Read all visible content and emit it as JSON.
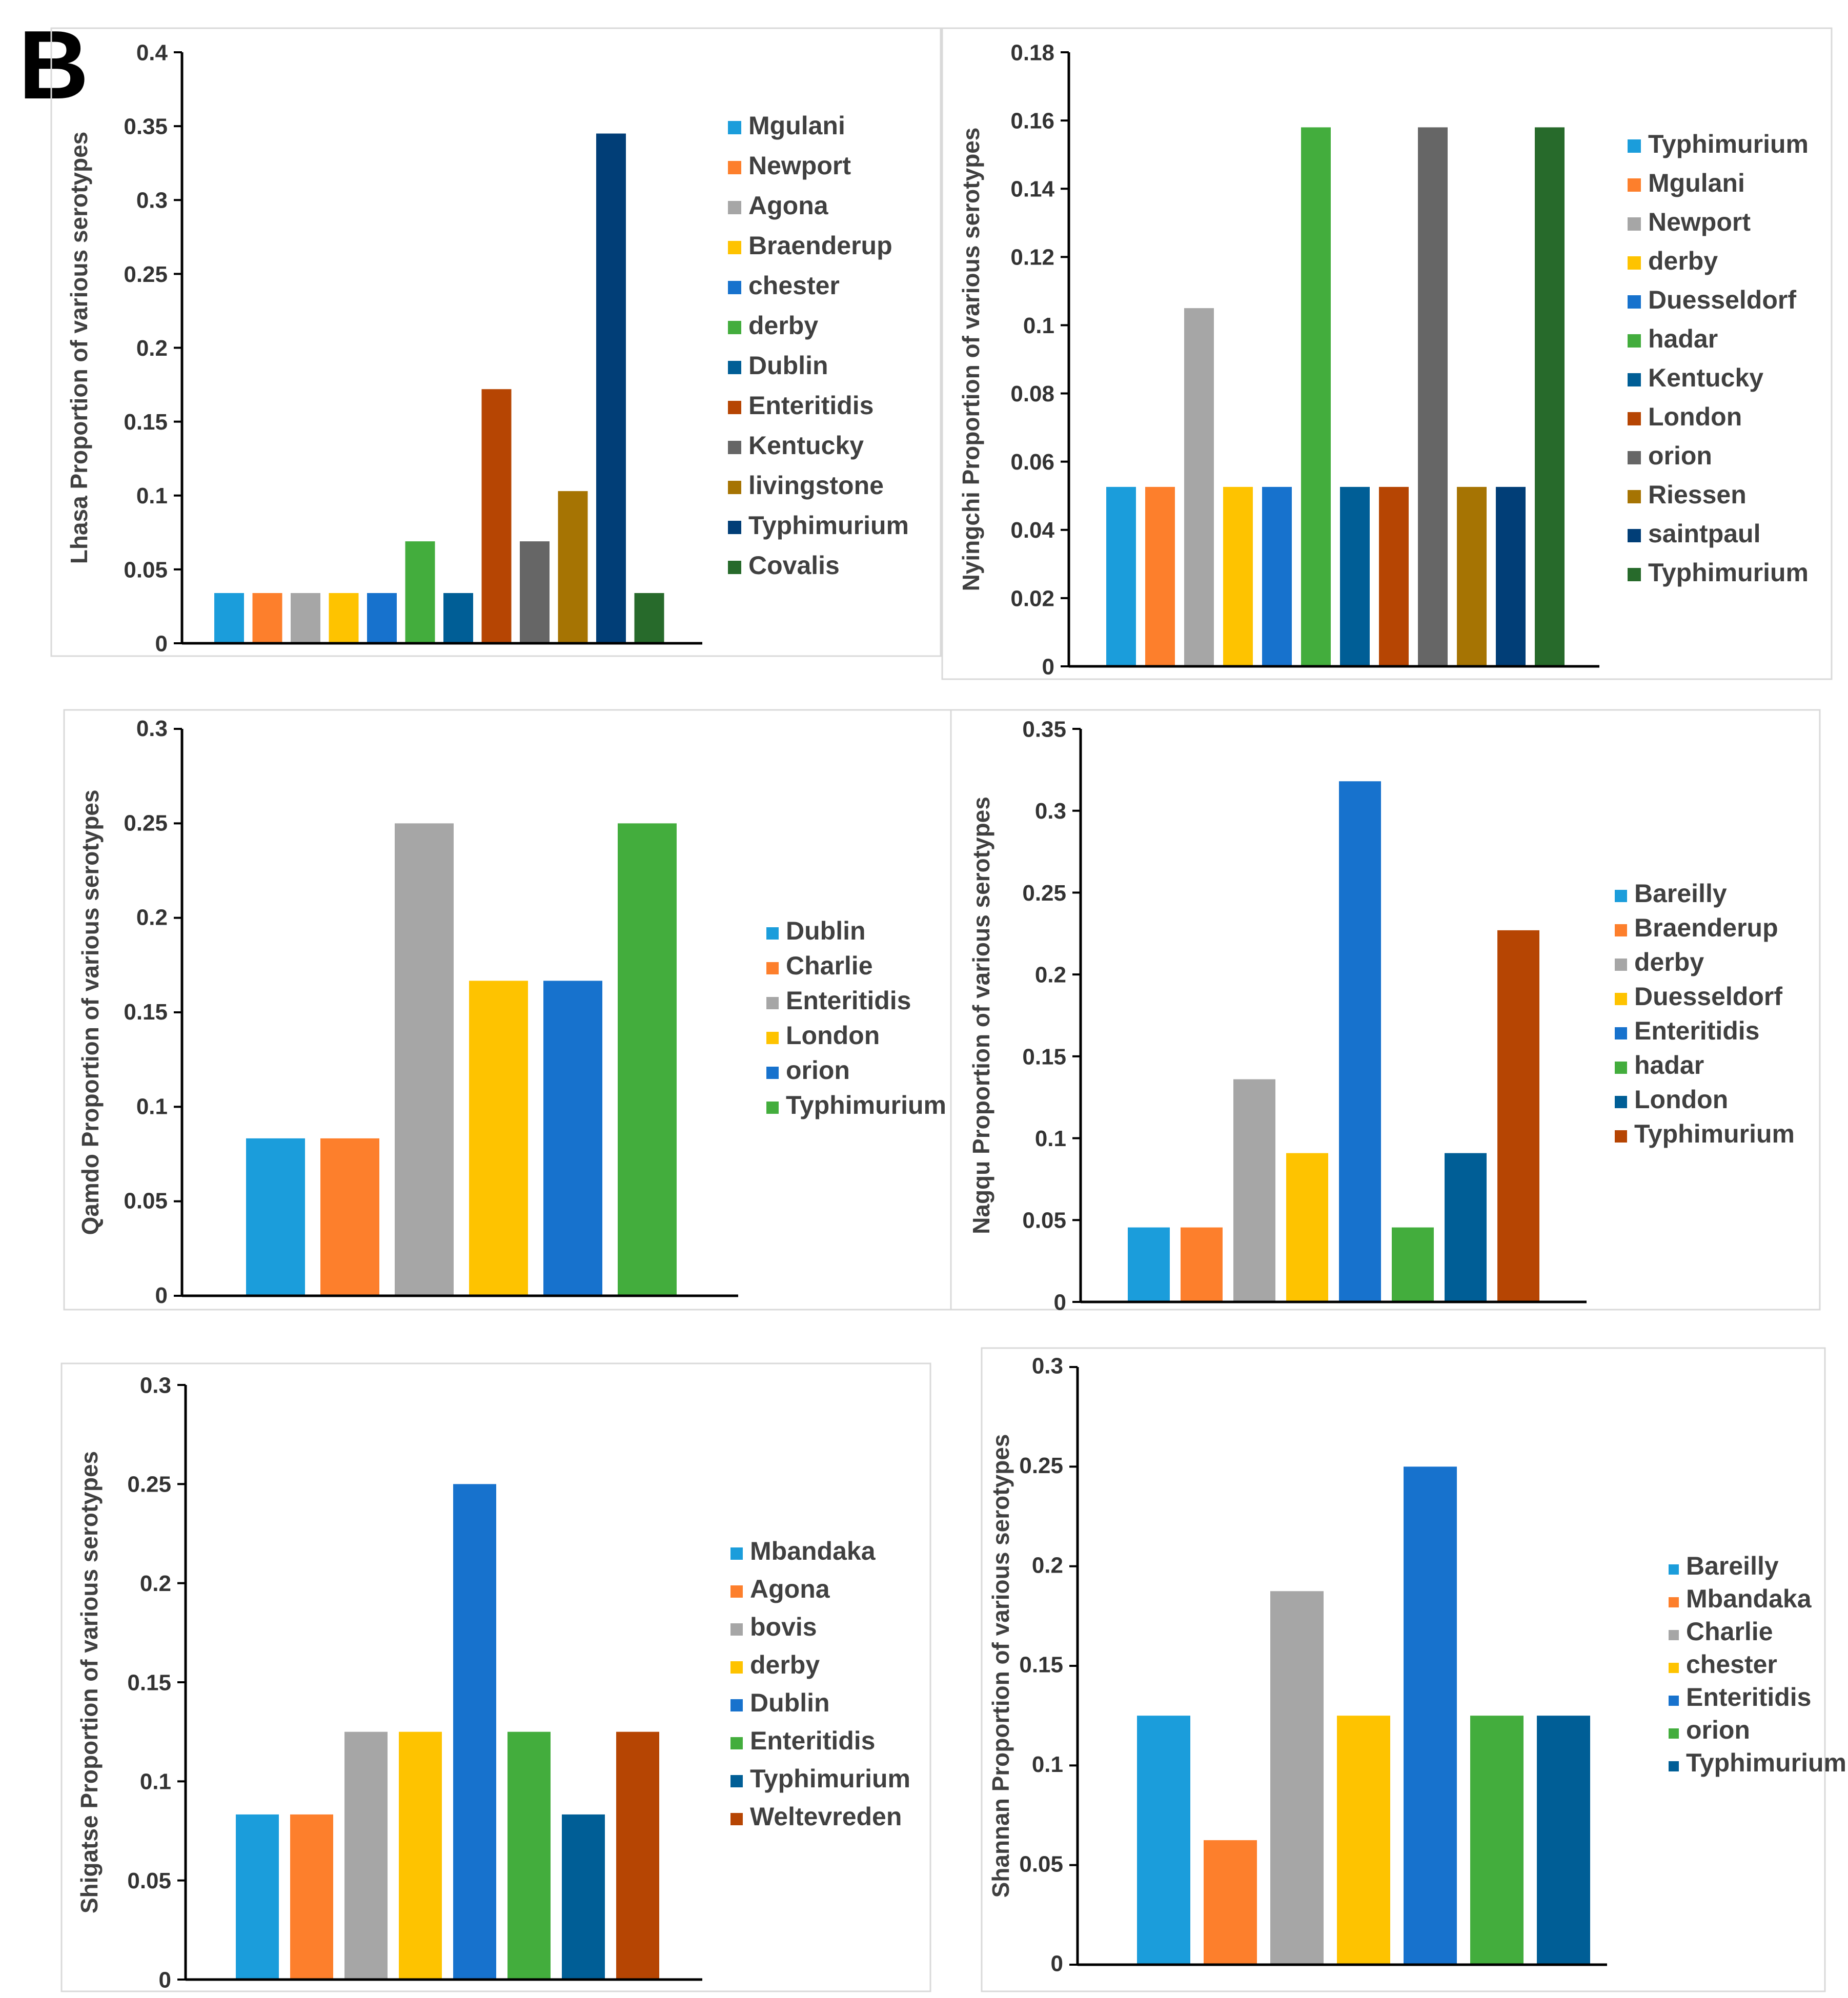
{
  "figure": {
    "panel_label": "B"
  },
  "chart_data": [
    {
      "type": "bar",
      "title": "",
      "ylabel": "Lhasa Proportion of various serotypes",
      "ylim": [
        0,
        0.4
      ],
      "yticks": [
        "0",
        "0.05",
        "0.1",
        "0.15",
        "0.2",
        "0.25",
        "0.3",
        "0.35",
        "0.4"
      ],
      "legend_position": "right",
      "categories": [
        "Mgulani",
        "Newport",
        "Agona",
        "Braenderup",
        "chester",
        "derby",
        "Dublin",
        "Enteritidis",
        "Kentucky",
        "livingstone",
        "Typhimurium",
        "Covalis"
      ],
      "values": [
        0.034,
        0.034,
        0.034,
        0.034,
        0.034,
        0.069,
        0.034,
        0.172,
        0.069,
        0.103,
        0.345,
        0.034
      ],
      "colors": [
        "#1b9ddb",
        "#fd7f2c",
        "#a6a6a6",
        "#fec300",
        "#1772cd",
        "#43ad3d",
        "#005e96",
        "#b64503",
        "#666666",
        "#a67403",
        "#013e77",
        "#276a2b"
      ]
    },
    {
      "type": "bar",
      "title": "",
      "ylabel": "Nyingchi Proportion of various serotypes",
      "ylim": [
        0,
        0.18
      ],
      "yticks": [
        "0",
        "0.02",
        "0.04",
        "0.06",
        "0.08",
        "0.1",
        "0.12",
        "0.14",
        "0.16",
        "0.18"
      ],
      "legend_position": "right",
      "categories": [
        "Typhimurium",
        "Mgulani",
        "Newport",
        "derby",
        "Duesseldorf",
        "hadar",
        "Kentucky",
        "London",
        "orion",
        "Riessen",
        "saintpaul",
        "Typhimurium"
      ],
      "values": [
        0.0526,
        0.0526,
        0.105,
        0.0526,
        0.0526,
        0.158,
        0.0526,
        0.0526,
        0.158,
        0.0526,
        0.0526,
        0.158
      ],
      "colors": [
        "#1b9ddb",
        "#fd7f2c",
        "#a6a6a6",
        "#fec300",
        "#1772cd",
        "#43ad3d",
        "#005e96",
        "#b64503",
        "#666666",
        "#a67403",
        "#013e77",
        "#276a2b"
      ]
    },
    {
      "type": "bar",
      "title": "",
      "ylabel": "Qamdo Proportion of various serotypes",
      "ylim": [
        0,
        0.3
      ],
      "yticks": [
        "0",
        "0.05",
        "0.1",
        "0.15",
        "0.2",
        "0.25",
        "0.3"
      ],
      "legend_position": "right",
      "categories": [
        "Dublin",
        "Charlie",
        "Enteritidis",
        "London",
        "orion",
        "Typhimurium"
      ],
      "values": [
        0.0833,
        0.0833,
        0.25,
        0.1667,
        0.1667,
        0.25
      ],
      "colors": [
        "#1b9ddb",
        "#fd7f2c",
        "#a6a6a6",
        "#fec300",
        "#1772cd",
        "#43ad3d"
      ]
    },
    {
      "type": "bar",
      "title": "",
      "ylabel": "Nagqu Proportion of various serotypes",
      "ylim": [
        0,
        0.35
      ],
      "yticks": [
        "0",
        "0.05",
        "0.1",
        "0.15",
        "0.2",
        "0.25",
        "0.3",
        "0.35"
      ],
      "legend_position": "right",
      "categories": [
        "Bareilly",
        "Braenderup",
        "derby",
        "Duesseldorf",
        "Enteritidis",
        "hadar",
        "London",
        "Typhimurium"
      ],
      "values": [
        0.0455,
        0.0455,
        0.136,
        0.0909,
        0.318,
        0.0455,
        0.0909,
        0.227
      ],
      "colors": [
        "#1b9ddb",
        "#fd7f2c",
        "#a6a6a6",
        "#fec300",
        "#1772cd",
        "#43ad3d",
        "#005e96",
        "#b64503"
      ]
    },
    {
      "type": "bar",
      "title": "",
      "ylabel": "Shigatse Proportion of various serotypes",
      "ylim": [
        0,
        0.3
      ],
      "yticks": [
        "0",
        "0.05",
        "0.1",
        "0.15",
        "0.2",
        "0.25",
        "0.3"
      ],
      "legend_position": "right",
      "categories": [
        "Mbandaka",
        "Agona",
        "bovis",
        "derby",
        "Dublin",
        "Enteritidis",
        "Typhimurium",
        "Weltevreden"
      ],
      "values": [
        0.0833,
        0.0833,
        0.125,
        0.125,
        0.25,
        0.125,
        0.0833,
        0.125
      ],
      "colors": [
        "#1b9ddb",
        "#fd7f2c",
        "#a6a6a6",
        "#fec300",
        "#1772cd",
        "#43ad3d",
        "#005e96",
        "#b64503"
      ]
    },
    {
      "type": "bar",
      "title": "",
      "ylabel": "Shannan Proportion of various serotypes",
      "ylim": [
        0,
        0.3
      ],
      "yticks": [
        "0",
        "0.05",
        "0.1",
        "0.15",
        "0.2",
        "0.25",
        "0.3"
      ],
      "legend_position": "right",
      "categories": [
        "Bareilly",
        "Mbandaka",
        "Charlie",
        "chester",
        "Enteritidis",
        "orion",
        "Typhimurium"
      ],
      "values": [
        0.125,
        0.0625,
        0.1875,
        0.125,
        0.25,
        0.125,
        0.125
      ],
      "colors": [
        "#1b9ddb",
        "#fd7f2c",
        "#a6a6a6",
        "#fec300",
        "#1772cd",
        "#43ad3d",
        "#005e96"
      ]
    }
  ]
}
